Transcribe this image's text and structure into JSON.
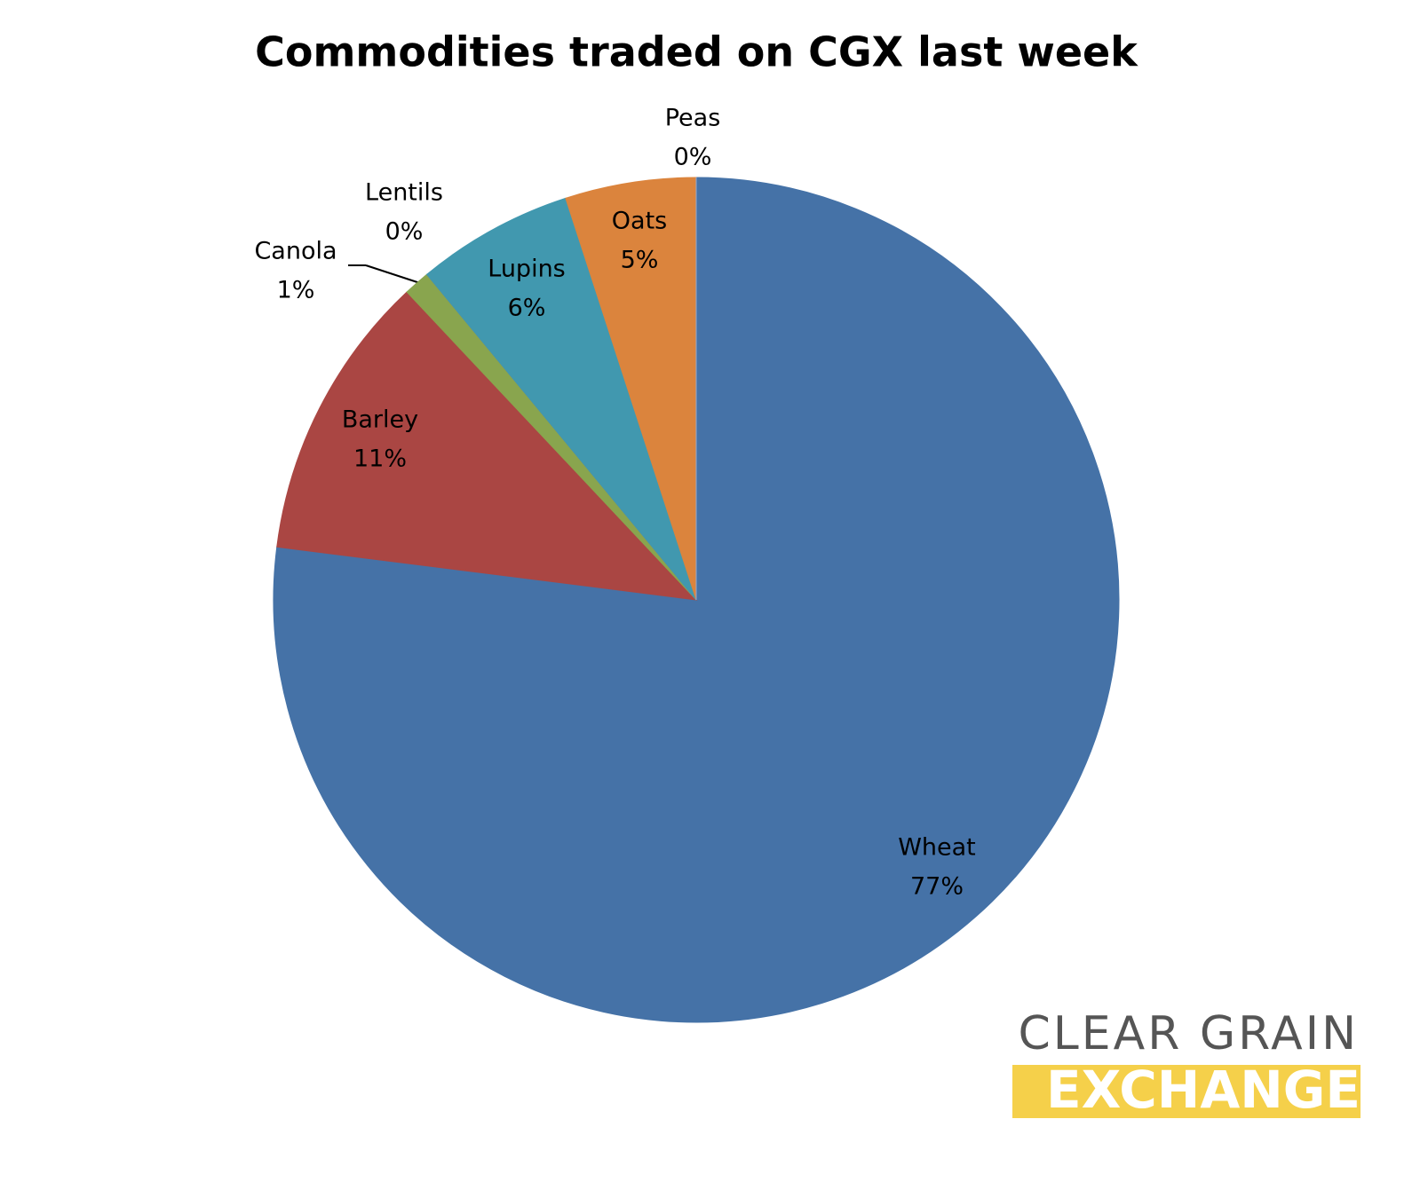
{
  "chart_data": {
    "type": "pie",
    "title": "Commodities traded on CGX last week",
    "categories": [
      "Wheat",
      "Barley",
      "Canola",
      "Lentils",
      "Lupins",
      "Oats",
      "Peas"
    ],
    "values": [
      77,
      11,
      1,
      0,
      6,
      5,
      0
    ],
    "value_labels": [
      "77%",
      "11%",
      "1%",
      "0%",
      "6%",
      "5%",
      "0%"
    ],
    "colors": [
      "#4572a7",
      "#aa4643",
      "#89a54e",
      "#7d5fa0",
      "#4198af",
      "#db843d",
      "#93a9cf"
    ]
  },
  "logo": {
    "line1": "CLEAR GRAIN",
    "line2": "EXCHANGE"
  }
}
